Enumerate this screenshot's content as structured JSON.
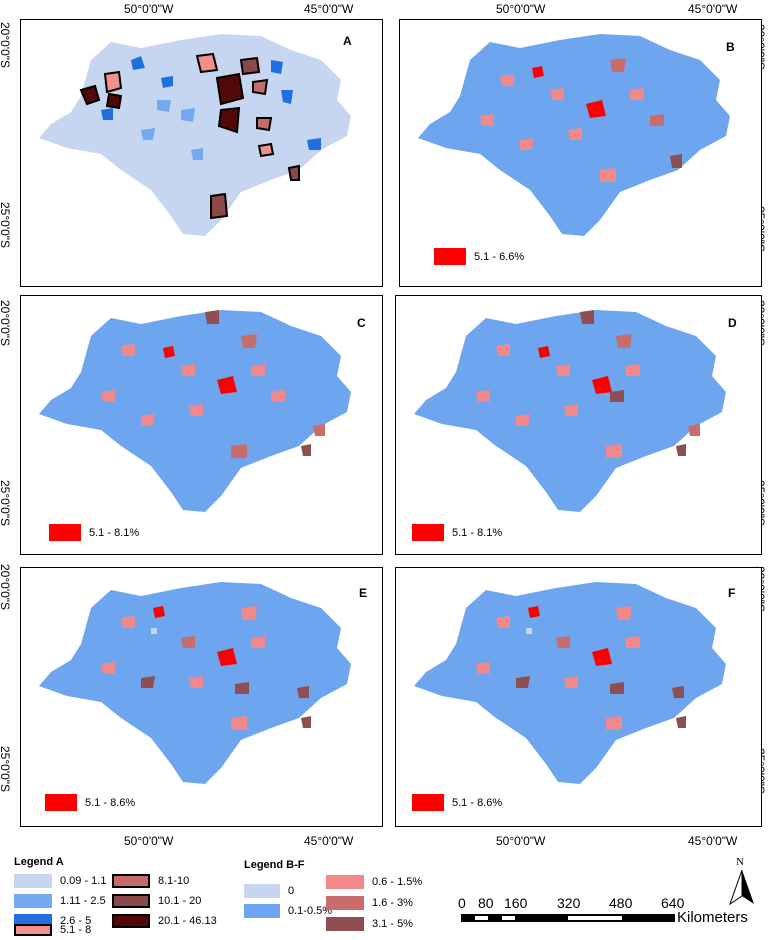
{
  "axes": {
    "top_lon": [
      "50°0'0\"W",
      "45°0'0\"W"
    ],
    "bottom_lon": [
      "50°0'0\"W",
      "45°0'0\"W"
    ],
    "left_lat": [
      "20°0'0\"S",
      "25°0'0\"S"
    ],
    "right_lat": [
      "20°0'0\"S",
      "25°0'0\"S"
    ]
  },
  "panels": [
    {
      "letter": "A",
      "legend": ""
    },
    {
      "letter": "B",
      "legend": "5.1 - 6.6%"
    },
    {
      "letter": "C",
      "legend": "5.1 - 8.1%"
    },
    {
      "letter": "D",
      "legend": "5.1 - 8.1%"
    },
    {
      "letter": "E",
      "legend": "5.1 - 8.6%"
    },
    {
      "letter": "F",
      "legend": "5.1 - 8.6%"
    }
  ],
  "legend_a": {
    "title": "Legend A",
    "items": [
      {
        "label": "0.09 - 1.1",
        "color": "#c6d6f1"
      },
      {
        "label": "1.11 - 2.5",
        "color": "#73a9ee"
      },
      {
        "label": "2.6 - 5",
        "color": "#1f6fe0"
      },
      {
        "label": "5.1 - 8",
        "color": "#f0918f"
      },
      {
        "label": "8.1-10",
        "color": "#c56b6b"
      },
      {
        "label": "10.1 - 20",
        "color": "#8b4a4a"
      },
      {
        "label": "20.1 - 46.13",
        "color": "#520808"
      }
    ]
  },
  "legend_bf": {
    "title": "Legend B-F",
    "items": [
      {
        "label": "0",
        "color": "#c6d6f1"
      },
      {
        "label": "0.1-0.5%",
        "color": "#6ea5ef"
      },
      {
        "label": "0.6 - 1.5%",
        "color": "#f2888a"
      },
      {
        "label": "1.6 - 3%",
        "color": "#c86c6c"
      },
      {
        "label": "3.1 - 5%",
        "color": "#8f4f50"
      }
    ]
  },
  "scale_bar": {
    "labels": [
      "0",
      "80",
      "160",
      "320",
      "480",
      "640"
    ],
    "unit": "Kilometers"
  },
  "north_arrow": {
    "label": "N",
    "icon": "north-arrow-icon"
  },
  "colors": {
    "state_fill_a": "#c6d6f1",
    "state_fill_bf": "#6ea5ef",
    "high_class": "#ff0000"
  }
}
